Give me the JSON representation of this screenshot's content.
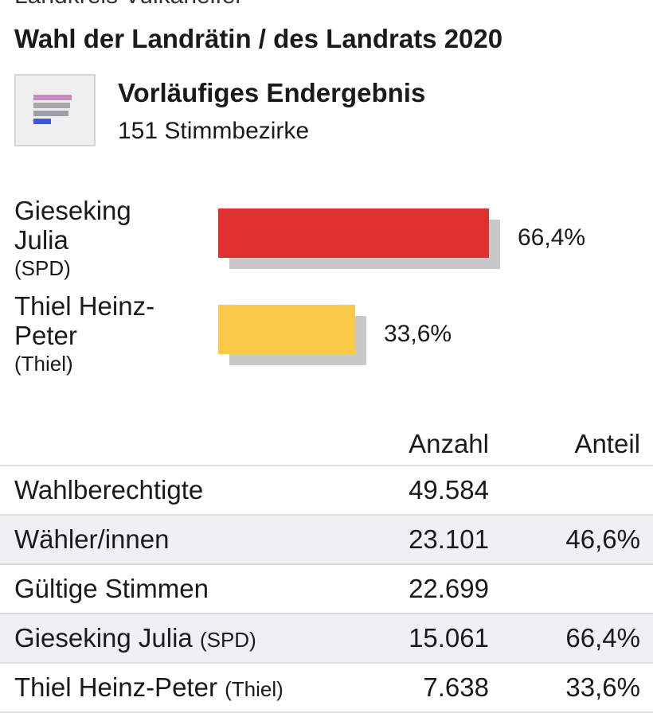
{
  "header": {
    "region": "Landkreis Vulkaneifel",
    "title": "Wahl der Landrätin / des Landrats 2020",
    "status_title": "Vorläufiges Endergebnis",
    "status_sub": "151 Stimmbezirke",
    "icon": "bar-chart-icon"
  },
  "colors": {
    "spd": "#e03131",
    "thiel": "#fcc94a",
    "shadow": "#c8c8c8",
    "row_alt": "#eef1f4"
  },
  "chart_data": {
    "type": "bar",
    "orientation": "horizontal",
    "categories": [
      "Gieseking Julia (SPD)",
      "Thiel Heinz-Peter (Thiel)"
    ],
    "values": [
      66.4,
      33.6
    ],
    "value_labels": [
      "66,4%",
      "33,6%"
    ],
    "unit": "%",
    "xlim": [
      0,
      66.4
    ]
  },
  "candidates": [
    {
      "name_line1": "Gieseking",
      "name_line2": "Julia",
      "party": "(SPD)",
      "pct": "66,4%"
    },
    {
      "name_line1": "Thiel Heinz-",
      "name_line2": "Peter",
      "party": "(Thiel)",
      "pct": "33,6%"
    }
  ],
  "table": {
    "headers": {
      "label": "",
      "count": "Anzahl",
      "share": "Anteil"
    },
    "rows": [
      {
        "label": "Wahlberechtigte",
        "party": "",
        "count": "49.584",
        "share": ""
      },
      {
        "label": "Wähler/innen",
        "party": "",
        "count": "23.101",
        "share": "46,6%"
      },
      {
        "label": "Gültige Stimmen",
        "party": "",
        "count": "22.699",
        "share": ""
      },
      {
        "label": "Gieseking Julia",
        "party": "(SPD)",
        "count": "15.061",
        "share": "66,4%"
      },
      {
        "label": "Thiel Heinz-Peter",
        "party": "(Thiel)",
        "count": "7.638",
        "share": "33,6%"
      }
    ]
  }
}
